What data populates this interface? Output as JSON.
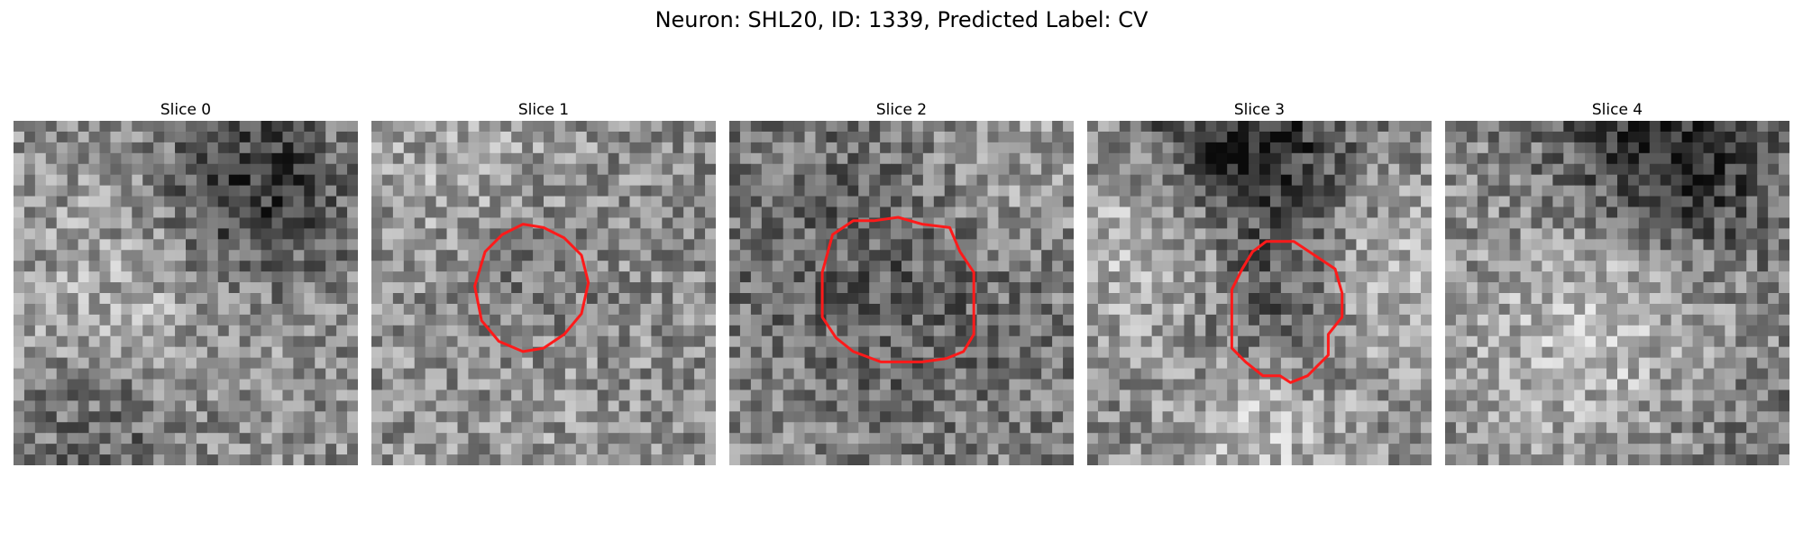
{
  "figure": {
    "title": "Neuron: SHL20, ID: 1339, Predicted Label: CV"
  },
  "panels": [
    {
      "title": "Slice 0",
      "mask": false
    },
    {
      "title": "Slice 1",
      "mask": true
    },
    {
      "title": "Slice 2",
      "mask": true
    },
    {
      "title": "Slice 3",
      "mask": true
    },
    {
      "title": "Slice 4",
      "mask": false
    }
  ],
  "colors": {
    "contour": "#ff1a1a",
    "colormap": "gray"
  }
}
